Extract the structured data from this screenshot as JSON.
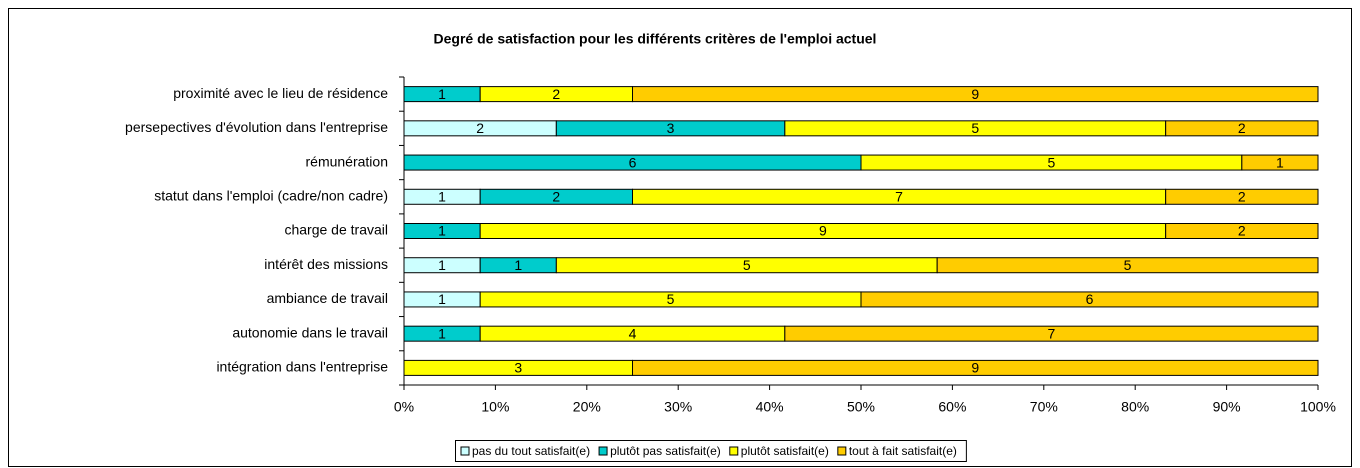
{
  "chart_data": {
    "type": "bar",
    "orientation": "horizontal",
    "stacking": "percent",
    "title": "Degré de satisfaction  pour les différents critères de l'emploi actuel",
    "categories": [
      "proximité avec le lieu de résidence",
      "persepectives d'évolution dans l'entreprise",
      "rémunération",
      "statut dans l'emploi (cadre/non cadre)",
      "charge de travail",
      "intérêt des missions",
      "ambiance de travail",
      "autonomie dans le travail",
      "intégration dans l'entreprise"
    ],
    "series": [
      {
        "name": "pas du tout satisfait(e)",
        "color": "#ccffff",
        "values": [
          0,
          2,
          0,
          1,
          0,
          1,
          1,
          0,
          0
        ]
      },
      {
        "name": "plutôt pas satisfait(e)",
        "color": "#00cccc",
        "values": [
          1,
          3,
          6,
          2,
          1,
          1,
          0,
          1,
          0
        ]
      },
      {
        "name": "plutôt satisfait(e)",
        "color": "#ffff00",
        "values": [
          2,
          5,
          5,
          7,
          9,
          5,
          5,
          4,
          3
        ]
      },
      {
        "name": "tout à fait satisfait(e)",
        "color": "#ffcc00",
        "values": [
          9,
          2,
          1,
          2,
          2,
          5,
          6,
          7,
          9
        ]
      }
    ],
    "xlim": [
      0,
      100
    ],
    "xticks": [
      {
        "value": 0,
        "label": "0%"
      },
      {
        "value": 10,
        "label": "10%"
      },
      {
        "value": 20,
        "label": "20%"
      },
      {
        "value": 30,
        "label": "30%"
      },
      {
        "value": 40,
        "label": "40%"
      },
      {
        "value": 50,
        "label": "50%"
      },
      {
        "value": 60,
        "label": "60%"
      },
      {
        "value": 70,
        "label": "70%"
      },
      {
        "value": 80,
        "label": "80%"
      },
      {
        "value": 90,
        "label": "90%"
      },
      {
        "value": 100,
        "label": "100%"
      }
    ],
    "legend": "bottom"
  }
}
